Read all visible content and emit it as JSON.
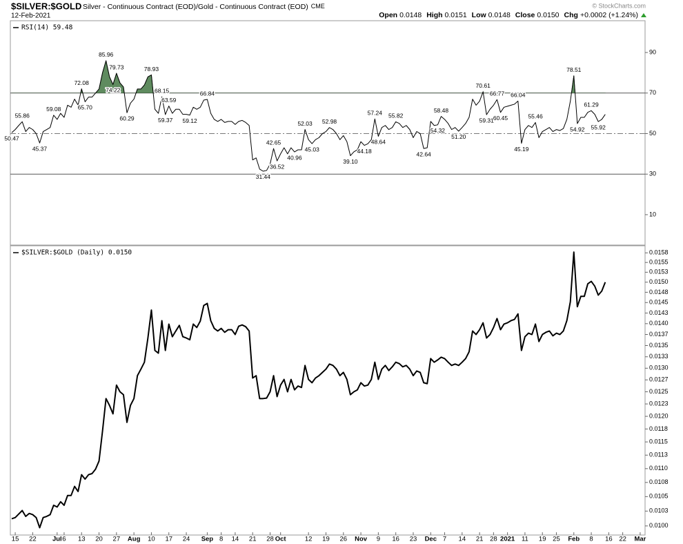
{
  "header": {
    "symbol": "$SILVER:$GOLD",
    "description": "Silver - Continuous Contract (EOD)/Gold - Continuous Contract (EOD)",
    "exchange": "CME",
    "date": "12-Feb-2021",
    "credit": "© StockCharts.com",
    "quote": [
      {
        "label": "Open",
        "value": "0.0148"
      },
      {
        "label": "High",
        "value": "0.0151"
      },
      {
        "label": "Low",
        "value": "0.0148"
      },
      {
        "label": "Close",
        "value": "0.0150"
      },
      {
        "label": "Chg",
        "value": "+0.0002 (+1.24%)"
      }
    ]
  },
  "chart_data": [
    {
      "type": "line",
      "log": false,
      "xlim": [
        -0.4,
        181.4
      ],
      "ylim": [
        -5,
        105
      ],
      "yticks": [
        10,
        30,
        50,
        70,
        90
      ],
      "reference_lines": [
        {
          "value": 70,
          "style": "solid"
        },
        {
          "value": 50,
          "style": "dashdot"
        },
        {
          "value": 30,
          "style": "solid"
        }
      ],
      "fill_above": 70,
      "fill_color": "#5f8b5f",
      "series": [
        {
          "name": "RSI(14) 59.48",
          "color": "#000000",
          "values": [
            50.47,
            52,
            54,
            55.86,
            51,
            53,
            52,
            50,
            45.37,
            51,
            52,
            53,
            59.08,
            57,
            60,
            58,
            64,
            63,
            67,
            64,
            72.08,
            65.7,
            68,
            68,
            70,
            72,
            80,
            85.96,
            78,
            74.22,
            79.73,
            75,
            73,
            60.29,
            65,
            67,
            72,
            72,
            74,
            78,
            78.93,
            62,
            60,
            68.15,
            59.37,
            63.59,
            60,
            62,
            62,
            59.5,
            59.5,
            59.12,
            63,
            62,
            63,
            66.5,
            66.84,
            60,
            57,
            56,
            57,
            55.5,
            56,
            56,
            54.5,
            56,
            56.5,
            55.5,
            54,
            37,
            38,
            32.5,
            31.44,
            31.8,
            35,
            42.65,
            36.52,
            40,
            43,
            40,
            43,
            40.96,
            42,
            42,
            52.03,
            47,
            45.03,
            47,
            48,
            50,
            51,
            52.98,
            52,
            50,
            47,
            49,
            46,
            39.1,
            41,
            42,
            46,
            44.18,
            45,
            47,
            57.24,
            48.64,
            53,
            54,
            52,
            53,
            55.82,
            55,
            53,
            54,
            52,
            48,
            51,
            50,
            42.64,
            43,
            56,
            54,
            54.32,
            58.48,
            57,
            55,
            52,
            53,
            51.2,
            53,
            55,
            58,
            67,
            64,
            66,
            70.61,
            59.31,
            62,
            64,
            66.77,
            60.45,
            63,
            63.5,
            64,
            64.5,
            66.04,
            45.19,
            52,
            54,
            53,
            55.46,
            48,
            51,
            52,
            53,
            51,
            52,
            51.5,
            52.5,
            57,
            66,
            78.51,
            54.92,
            58,
            58,
            60.5,
            61.29,
            59.5,
            55.92,
            57,
            59.48
          ],
          "value_labels": [
            "50.47",
            null,
            null,
            "55.86",
            null,
            null,
            null,
            null,
            "45.37",
            null,
            null,
            null,
            "59.08",
            null,
            null,
            null,
            null,
            null,
            null,
            null,
            "72.08",
            "65.70",
            null,
            null,
            null,
            null,
            null,
            "85.96",
            null,
            "74.22",
            "79.73",
            null,
            null,
            "60.29",
            null,
            null,
            null,
            null,
            null,
            null,
            "78.93",
            null,
            null,
            "68.15",
            "59.37",
            "63.59",
            null,
            null,
            null,
            null,
            null,
            "59.12",
            null,
            null,
            null,
            null,
            "66.84",
            null,
            null,
            null,
            null,
            null,
            null,
            null,
            null,
            null,
            null,
            null,
            null,
            null,
            null,
            null,
            "31.44",
            null,
            null,
            "42.65",
            "36.52",
            null,
            null,
            null,
            null,
            "40.96",
            null,
            null,
            "52.03",
            null,
            "45.03",
            null,
            null,
            null,
            null,
            "52.98",
            null,
            null,
            null,
            null,
            null,
            "39.10",
            null,
            null,
            null,
            "44.18",
            null,
            null,
            "57.24",
            "48.64",
            null,
            null,
            null,
            null,
            "55.82",
            null,
            null,
            null,
            null,
            null,
            null,
            null,
            "42.64",
            null,
            null,
            null,
            "54.32",
            "58.48",
            null,
            null,
            null,
            null,
            "51.20",
            null,
            null,
            null,
            null,
            null,
            null,
            "70.61",
            "59.31",
            null,
            null,
            "66.77",
            "60.45",
            null,
            null,
            null,
            null,
            "66.04",
            "45.19",
            null,
            null,
            null,
            "55.46",
            null,
            null,
            null,
            null,
            null,
            null,
            null,
            null,
            null,
            null,
            "78.51",
            "54.92",
            null,
            null,
            null,
            "61.29",
            null,
            "55.92",
            null,
            null
          ]
        }
      ]
    },
    {
      "type": "line",
      "log": true,
      "xlim": [
        -0.4,
        181.4
      ],
      "ylim": [
        0.00985,
        0.0159
      ],
      "yticks": [
        {
          "value": 0.01575,
          "label": "0.0158"
        },
        0.0155,
        {
          "value": 0.01525,
          "label": "0.0153"
        },
        {
          "value": 0.015,
          "label": "0.0150"
        },
        {
          "value": 0.01475,
          "label": "0.0148"
        },
        0.0145,
        {
          "value": 0.01425,
          "label": "0.0143"
        },
        {
          "value": 0.014,
          "label": "0.0140"
        },
        {
          "value": 0.01375,
          "label": "0.0137"
        },
        0.0135,
        {
          "value": 0.01325,
          "label": "0.0133"
        },
        {
          "value": 0.013,
          "label": "0.0130"
        },
        {
          "value": 0.01275,
          "label": "0.0127"
        },
        0.0125,
        {
          "value": 0.01225,
          "label": "0.0123"
        },
        {
          "value": 0.012,
          "label": "0.0120"
        },
        {
          "value": 0.01175,
          "label": "0.0118"
        },
        0.0115,
        {
          "value": 0.01125,
          "label": "0.0113"
        },
        {
          "value": 0.011,
          "label": "0.0110"
        },
        {
          "value": 0.01075,
          "label": "0.0108"
        },
        0.0105,
        {
          "value": 0.01025,
          "label": "0.0103"
        },
        {
          "value": 0.01,
          "label": "0.0100"
        }
      ],
      "xticks": [
        {
          "value": 1,
          "label": "15"
        },
        {
          "value": 6,
          "label": "22"
        },
        {
          "value": 13,
          "label": "Jul"
        },
        {
          "value": 15,
          "label": "6"
        },
        {
          "value": 20,
          "label": "13"
        },
        {
          "value": 25,
          "label": "20"
        },
        {
          "value": 30,
          "label": "27"
        },
        {
          "value": 35,
          "label": "Aug"
        },
        {
          "value": 40,
          "label": "10"
        },
        {
          "value": 45,
          "label": "17"
        },
        {
          "value": 50,
          "label": "24"
        },
        {
          "value": 56,
          "label": "Sep"
        },
        {
          "value": 60,
          "label": "8"
        },
        {
          "value": 64,
          "label": "14"
        },
        {
          "value": 69,
          "label": "21"
        },
        {
          "value": 74,
          "label": "28"
        },
        {
          "value": 77,
          "label": "Oct"
        },
        {
          "value": 85,
          "label": "12"
        },
        {
          "value": 90,
          "label": "19"
        },
        {
          "value": 95,
          "label": "26"
        },
        {
          "value": 100,
          "label": "Nov"
        },
        {
          "value": 105,
          "label": "9"
        },
        {
          "value": 110,
          "label": "16"
        },
        {
          "value": 115,
          "label": "23"
        },
        {
          "value": 120,
          "label": "Dec"
        },
        {
          "value": 124,
          "label": "7"
        },
        {
          "value": 129,
          "label": "14"
        },
        {
          "value": 134,
          "label": "21"
        },
        {
          "value": 138,
          "label": "28"
        },
        {
          "value": 142,
          "label": "2021"
        },
        {
          "value": 147,
          "label": "11"
        },
        {
          "value": 152,
          "label": "19"
        },
        {
          "value": 156,
          "label": "25"
        },
        {
          "value": 161,
          "label": "Feb"
        },
        {
          "value": 166,
          "label": "8"
        },
        {
          "value": 171,
          "label": "16"
        },
        {
          "value": 175,
          "label": "22"
        },
        {
          "value": 180,
          "label": "Mar"
        }
      ],
      "series": [
        {
          "name": "$SILVER:$GOLD (Daily) 0.0150",
          "color": "#000000",
          "values": [
            0.01012,
            0.01014,
            0.0102,
            0.01026,
            0.01016,
            0.01021,
            0.01019,
            0.01014,
            0.00997,
            0.01014,
            0.01016,
            0.01019,
            0.01035,
            0.01032,
            0.01041,
            0.01035,
            0.01052,
            0.01052,
            0.01068,
            0.01059,
            0.01089,
            0.01081,
            0.01089,
            0.01091,
            0.01099,
            0.01114,
            0.01171,
            0.01236,
            0.01222,
            0.01205,
            0.01264,
            0.0125,
            0.01244,
            0.01188,
            0.01222,
            0.01236,
            0.01284,
            0.01298,
            0.01313,
            0.01367,
            0.01432,
            0.01339,
            0.01333,
            0.01407,
            0.01339,
            0.01399,
            0.0137,
            0.01383,
            0.01396,
            0.0137,
            0.01367,
            0.01363,
            0.01399,
            0.01391,
            0.01406,
            0.01443,
            0.01448,
            0.01407,
            0.01389,
            0.01383,
            0.01389,
            0.0138,
            0.01386,
            0.01386,
            0.01375,
            0.01394,
            0.01397,
            0.01393,
            0.01383,
            0.01279,
            0.01284,
            0.01236,
            0.01236,
            0.01237,
            0.0125,
            0.01284,
            0.0124,
            0.01264,
            0.01276,
            0.0125,
            0.01276,
            0.01254,
            0.01262,
            0.01259,
            0.01306,
            0.01276,
            0.01269,
            0.01279,
            0.01284,
            0.01291,
            0.01298,
            0.01309,
            0.01306,
            0.01298,
            0.01284,
            0.01291,
            0.01276,
            0.01244,
            0.0125,
            0.01254,
            0.01269,
            0.01262,
            0.01264,
            0.01276,
            0.01313,
            0.01276,
            0.01298,
            0.01306,
            0.01295,
            0.01303,
            0.01313,
            0.0131,
            0.01303,
            0.01306,
            0.01298,
            0.01284,
            0.01294,
            0.01291,
            0.01269,
            0.01267,
            0.01321,
            0.01313,
            0.01318,
            0.01324,
            0.01321,
            0.01313,
            0.01306,
            0.01309,
            0.01306,
            0.01313,
            0.01321,
            0.01336,
            0.01383,
            0.01375,
            0.01386,
            0.01402,
            0.01367,
            0.01375,
            0.01391,
            0.01412,
            0.01386,
            0.01399,
            0.01402,
            0.01407,
            0.0141,
            0.01423,
            0.01339,
            0.0137,
            0.01378,
            0.01375,
            0.01399,
            0.01359,
            0.01375,
            0.0138,
            0.01383,
            0.01372,
            0.01378,
            0.01375,
            0.01383,
            0.01407,
            0.01452,
            0.01577,
            0.0144,
            0.01465,
            0.01465,
            0.01496,
            0.01502,
            0.0149,
            0.01468,
            0.01478,
            0.015
          ]
        }
      ]
    }
  ]
}
